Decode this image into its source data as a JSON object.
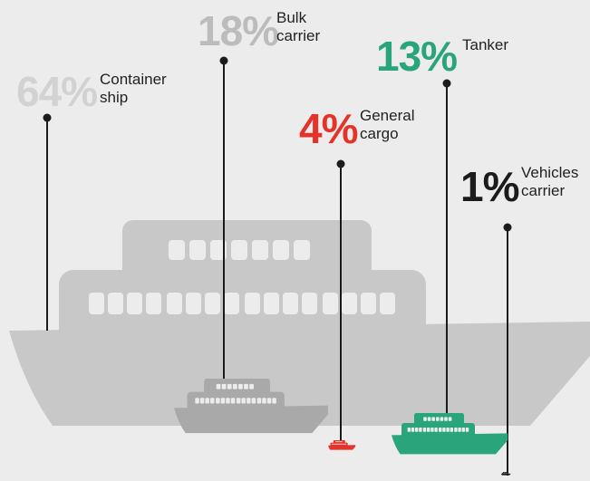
{
  "chart_data": {
    "type": "pictorial",
    "categories": [
      "Container ship",
      "Bulk carrier",
      "General cargo",
      "Tanker",
      "Vehicles carrier"
    ],
    "values": [
      64,
      18,
      4,
      13,
      1
    ],
    "value_labels": [
      "64%",
      "18%",
      "4%",
      "13%",
      "1%"
    ],
    "colors": [
      "#d2d2d2",
      "#bcbcbc",
      "#e5332a",
      "#2aa57b",
      "#1b1b1b"
    ],
    "ship_colors": [
      "#c8c8c8",
      "#a9a9a9",
      "#e5332a",
      "#2aa57b",
      "#1b1b1b"
    ]
  }
}
